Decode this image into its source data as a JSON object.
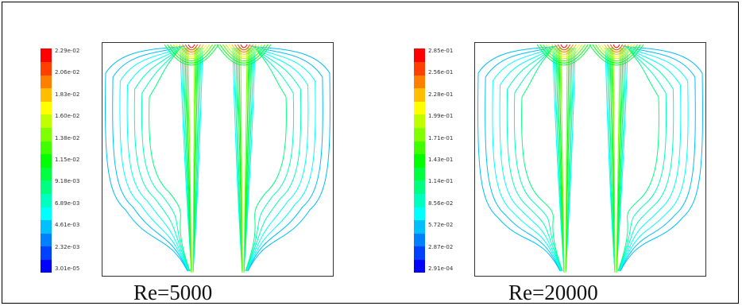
{
  "colormap": [
    "#0000ff",
    "#0040ff",
    "#0080ff",
    "#00bfff",
    "#00ffff",
    "#00ffbf",
    "#00ff80",
    "#00ff40",
    "#00ff00",
    "#40ff00",
    "#80ff00",
    "#bfff00",
    "#ffff00",
    "#ffbf00",
    "#ff8000",
    "#ff4000",
    "#ff0000"
  ],
  "panels": [
    {
      "caption": "Re=5000",
      "ticks": [
        "2.29e-02",
        "2.06e-02",
        "1.83e-02",
        "1.60e-02",
        "1.38e-02",
        "1.15e-02",
        "9.18e-03",
        "6.89e-03",
        "4.61e-03",
        "2.32e-03",
        "3.01e-05"
      ]
    },
    {
      "caption": "Re=20000",
      "ticks": [
        "2.85e-01",
        "2.56e-01",
        "2.28e-01",
        "1.99e-01",
        "1.71e-01",
        "1.43e-01",
        "1.14e-01",
        "8.56e-02",
        "5.72e-02",
        "2.87e-02",
        "2.91e-04"
      ]
    }
  ]
}
